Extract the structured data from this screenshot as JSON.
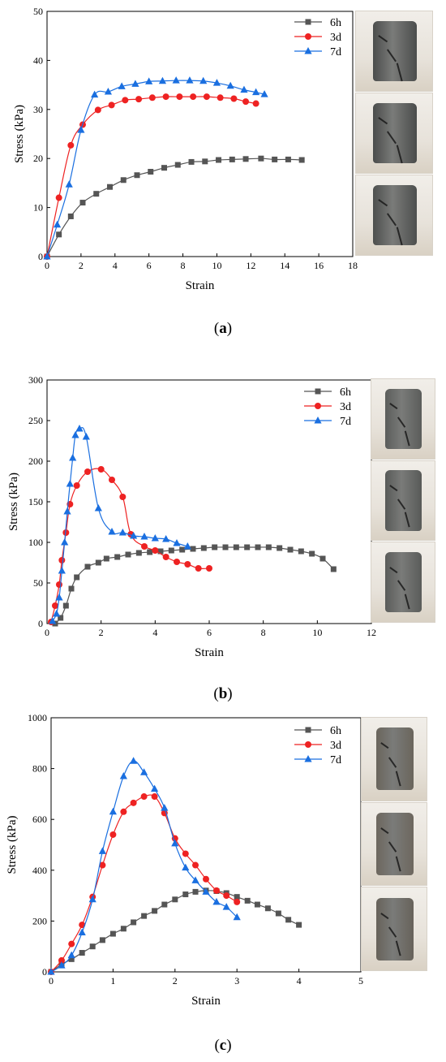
{
  "panels": [
    {
      "caption_label": "a",
      "chart_data": {
        "type": "line",
        "xlabel": "Strain",
        "ylabel": "Stress (kPa)",
        "xlim": [
          0,
          18
        ],
        "ylim": [
          0,
          50
        ],
        "xticks": [
          0,
          2,
          4,
          6,
          8,
          10,
          12,
          14,
          16,
          18
        ],
        "yticks": [
          0,
          10,
          20,
          30,
          40,
          50
        ],
        "legend_position": "top-right",
        "series": [
          {
            "name": "6h",
            "color": "#555555",
            "marker": "square",
            "x": [
              0,
              0.7,
              1.4,
              2.1,
              2.9,
              3.7,
              4.5,
              5.3,
              6.1,
              6.9,
              7.7,
              8.5,
              9.3,
              10.1,
              10.9,
              11.7,
              12.6,
              13.4,
              14.2,
              15.0
            ],
            "y": [
              0,
              4.5,
              8.2,
              11.0,
              12.8,
              14.2,
              15.6,
              16.6,
              17.3,
              18.1,
              18.7,
              19.3,
              19.4,
              19.7,
              19.8,
              19.9,
              20.0,
              19.8,
              19.8,
              19.7
            ]
          },
          {
            "name": "3d",
            "color": "#ee2222",
            "marker": "circle",
            "x": [
              0,
              0.7,
              1.4,
              2.1,
              3.0,
              3.8,
              4.6,
              5.4,
              6.2,
              7.0,
              7.8,
              8.6,
              9.4,
              10.2,
              11.0,
              11.7,
              12.3
            ],
            "y": [
              0,
              12.0,
              22.7,
              26.9,
              29.9,
              30.9,
              31.9,
              32.1,
              32.4,
              32.6,
              32.6,
              32.6,
              32.6,
              32.4,
              32.2,
              31.6,
              31.2
            ]
          },
          {
            "name": "7d",
            "color": "#1a6fe0",
            "marker": "triangle",
            "x": [
              0,
              0.6,
              1.3,
              2.0,
              2.8,
              3.6,
              4.4,
              5.2,
              6.0,
              6.8,
              7.6,
              8.4,
              9.2,
              10.0,
              10.8,
              11.6,
              12.3,
              12.8
            ],
            "y": [
              0,
              6.5,
              14.7,
              25.8,
              33.0,
              33.6,
              34.7,
              35.2,
              35.7,
              35.8,
              35.9,
              35.9,
              35.8,
              35.4,
              34.8,
              34.0,
              33.5,
              33.1
            ]
          }
        ]
      }
    },
    {
      "caption_label": "b",
      "chart_data": {
        "type": "line",
        "xlabel": "Strain",
        "ylabel": "Stress (kPa)",
        "xlim": [
          0,
          12
        ],
        "ylim": [
          0,
          300
        ],
        "xticks": [
          0,
          2,
          4,
          6,
          8,
          10,
          12
        ],
        "yticks": [
          0,
          50,
          100,
          150,
          200,
          250,
          300
        ],
        "legend_position": "top-right",
        "series": [
          {
            "name": "6h",
            "color": "#555555",
            "marker": "square",
            "x": [
              0.3,
              0.5,
              0.7,
              0.9,
              1.1,
              1.5,
              1.9,
              2.2,
              2.6,
              3.0,
              3.4,
              3.8,
              4.2,
              4.6,
              5.0,
              5.4,
              5.8,
              6.2,
              6.6,
              7.0,
              7.4,
              7.8,
              8.2,
              8.6,
              9.0,
              9.4,
              9.8,
              10.2,
              10.6
            ],
            "y": [
              0,
              7,
              22,
              43,
              57,
              70,
              75,
              80,
              82,
              85,
              87,
              88,
              89,
              90,
              91,
              92,
              93,
              94,
              94,
              94,
              94,
              94,
              94,
              93,
              91,
              89,
              86,
              80,
              67
            ]
          },
          {
            "name": "3d",
            "color": "#ee2222",
            "marker": "circle",
            "x": [
              0.15,
              0.3,
              0.45,
              0.55,
              0.7,
              0.85,
              1.1,
              1.5,
              2.0,
              2.4,
              2.8,
              3.1,
              3.6,
              4.0,
              4.4,
              4.8,
              5.2,
              5.6,
              6.0
            ],
            "y": [
              2,
              22,
              48,
              78,
              112,
              147,
              170,
              187,
              190,
              177,
              156,
              110,
              95,
              90,
              82,
              76,
              73,
              68,
              68
            ]
          },
          {
            "name": "7d",
            "color": "#1a6fe0",
            "marker": "triangle",
            "x": [
              0.2,
              0.35,
              0.45,
              0.55,
              0.65,
              0.75,
              0.85,
              0.95,
              1.05,
              1.2,
              1.45,
              1.9,
              2.4,
              2.8,
              3.2,
              3.6,
              4.0,
              4.4,
              4.8,
              5.2
            ],
            "y": [
              3,
              12,
              32,
              65,
              100,
              138,
              172,
              204,
              232,
              240,
              230,
              142,
              113,
              112,
              108,
              107,
              105,
              104,
              99,
              95
            ]
          }
        ]
      }
    },
    {
      "caption_label": "c",
      "chart_data": {
        "type": "line",
        "xlabel": "Strain",
        "ylabel": "Stress (kPa)",
        "xlim": [
          0,
          5
        ],
        "ylim": [
          0,
          1000
        ],
        "xticks": [
          0,
          1,
          2,
          3,
          4,
          5
        ],
        "yticks": [
          0,
          200,
          400,
          600,
          800,
          1000
        ],
        "legend_position": "top-right",
        "series": [
          {
            "name": "6h",
            "color": "#555555",
            "marker": "square",
            "x": [
              0,
              0.17,
              0.33,
              0.5,
              0.67,
              0.83,
              1.0,
              1.17,
              1.33,
              1.5,
              1.67,
              1.83,
              2.0,
              2.17,
              2.33,
              2.5,
              2.67,
              2.83,
              3.0,
              3.17,
              3.33,
              3.5,
              3.67,
              3.83,
              4.0
            ],
            "y": [
              0,
              30,
              50,
              75,
              100,
              125,
              150,
              170,
              195,
              220,
              240,
              265,
              285,
              305,
              315,
              320,
              318,
              310,
              295,
              280,
              265,
              250,
              230,
              205,
              185
            ]
          },
          {
            "name": "3d",
            "color": "#ee2222",
            "marker": "circle",
            "x": [
              0,
              0.17,
              0.33,
              0.5,
              0.67,
              0.83,
              1.0,
              1.17,
              1.33,
              1.5,
              1.67,
              1.83,
              2.0,
              2.17,
              2.33,
              2.5,
              2.67,
              2.83,
              3.0
            ],
            "y": [
              0,
              45,
              110,
              185,
              295,
              420,
              540,
              630,
              665,
              690,
              690,
              625,
              525,
              465,
              420,
              365,
              320,
              300,
              275
            ]
          },
          {
            "name": "7d",
            "color": "#1a6fe0",
            "marker": "triangle",
            "x": [
              0,
              0.17,
              0.33,
              0.5,
              0.67,
              0.83,
              1.0,
              1.17,
              1.33,
              1.5,
              1.67,
              1.83,
              2.0,
              2.17,
              2.33,
              2.5,
              2.67,
              2.83,
              3.0
            ],
            "y": [
              0,
              25,
              65,
              155,
              285,
              475,
              630,
              770,
              830,
              785,
              720,
              645,
              505,
              410,
              360,
              315,
              275,
              255,
              215
            ]
          }
        ]
      }
    }
  ],
  "photo_tones": {
    "a": [
      "#4b4d4c",
      "#4a4c4b",
      "#4d4f4e"
    ],
    "b": [
      "#5b5d5b",
      "#585a58",
      "#5a5c5a"
    ],
    "c": [
      "#6a655c",
      "#6d675e",
      "#67625a"
    ]
  }
}
